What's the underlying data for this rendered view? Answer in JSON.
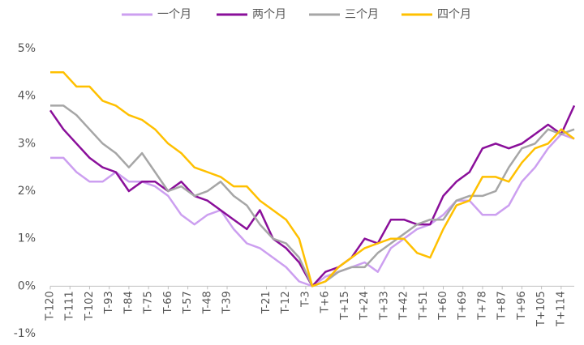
{
  "chart_data": {
    "type": "line",
    "x": [
      -120,
      -114,
      -108,
      -102,
      -96,
      -90,
      -84,
      -78,
      -72,
      -66,
      -60,
      -54,
      -48,
      -42,
      -36,
      -30,
      -24,
      -18,
      -12,
      -6,
      0,
      6,
      12,
      18,
      24,
      30,
      36,
      42,
      48,
      54,
      60,
      66,
      72,
      78,
      84,
      90,
      96,
      102,
      108,
      114,
      120
    ],
    "series": [
      {
        "name": "一个月",
        "color": "#cc9ff0",
        "values": [
          2.7,
          2.7,
          2.4,
          2.2,
          2.2,
          2.4,
          2.2,
          2.2,
          2.1,
          1.9,
          1.5,
          1.3,
          1.5,
          1.6,
          1.2,
          0.9,
          0.8,
          0.6,
          0.4,
          0.1,
          0.0,
          0.2,
          0.3,
          0.4,
          0.5,
          0.3,
          0.8,
          1.0,
          1.2,
          1.3,
          1.5,
          1.8,
          1.8,
          1.5,
          1.5,
          1.7,
          2.2,
          2.5,
          2.9,
          3.2,
          3.1
        ]
      },
      {
        "name": "两个月",
        "color": "#8a0f9a",
        "values": [
          3.7,
          3.3,
          3.0,
          2.7,
          2.5,
          2.4,
          2.0,
          2.2,
          2.2,
          2.0,
          2.2,
          1.9,
          1.8,
          1.6,
          1.4,
          1.2,
          1.6,
          1.0,
          0.8,
          0.5,
          0.0,
          0.3,
          0.4,
          0.6,
          1.0,
          0.9,
          1.4,
          1.4,
          1.3,
          1.3,
          1.9,
          2.2,
          2.4,
          2.9,
          3.0,
          2.9,
          3.0,
          3.2,
          3.4,
          3.2,
          3.8
        ]
      },
      {
        "name": "三个月",
        "color": "#a6a6a6",
        "values": [
          3.8,
          3.8,
          3.6,
          3.3,
          3.0,
          2.8,
          2.5,
          2.8,
          2.4,
          2.0,
          2.1,
          1.9,
          2.0,
          2.2,
          1.9,
          1.7,
          1.3,
          1.0,
          0.9,
          0.6,
          0.0,
          0.1,
          0.3,
          0.4,
          0.4,
          0.7,
          0.9,
          1.1,
          1.3,
          1.4,
          1.4,
          1.8,
          1.9,
          1.9,
          2.0,
          2.5,
          2.9,
          3.0,
          3.3,
          3.2,
          3.3
        ]
      },
      {
        "name": "四个月",
        "color": "#ffc000",
        "values": [
          4.5,
          4.5,
          4.2,
          4.2,
          3.9,
          3.8,
          3.6,
          3.5,
          3.3,
          3.0,
          2.8,
          2.5,
          2.4,
          2.3,
          2.1,
          2.1,
          1.8,
          1.6,
          1.4,
          1.0,
          0.0,
          0.1,
          0.4,
          0.6,
          0.8,
          0.9,
          1.0,
          1.0,
          0.7,
          0.6,
          1.2,
          1.7,
          1.8,
          2.3,
          2.3,
          2.2,
          2.6,
          2.9,
          3.0,
          3.3,
          3.1
        ]
      }
    ],
    "xlim": [
      -120,
      120
    ],
    "xticks": [
      {
        "value": -120,
        "label": "T-120"
      },
      {
        "value": -111,
        "label": "T-111"
      },
      {
        "value": -102,
        "label": "T-102"
      },
      {
        "value": -93,
        "label": "T-93"
      },
      {
        "value": -84,
        "label": "T-84"
      },
      {
        "value": -75,
        "label": "T-75"
      },
      {
        "value": -66,
        "label": "T-66"
      },
      {
        "value": -57,
        "label": "T-57"
      },
      {
        "value": -48,
        "label": "T-48"
      },
      {
        "value": -39,
        "label": "T-39"
      },
      {
        "value": -21,
        "label": "T-21"
      },
      {
        "value": -12,
        "label": "T-12"
      },
      {
        "value": -3,
        "label": "T-3"
      },
      {
        "value": 6,
        "label": "T+6"
      },
      {
        "value": 15,
        "label": "T+15"
      },
      {
        "value": 24,
        "label": "T+24"
      },
      {
        "value": 33,
        "label": "T+33"
      },
      {
        "value": 42,
        "label": "T+42"
      },
      {
        "value": 51,
        "label": "T+51"
      },
      {
        "value": 60,
        "label": "T+60"
      },
      {
        "value": 69,
        "label": "T+69"
      },
      {
        "value": 78,
        "label": "T+78"
      },
      {
        "value": 87,
        "label": "T+87"
      },
      {
        "value": 96,
        "label": "T+96"
      },
      {
        "value": 105,
        "label": "T+105"
      },
      {
        "value": 114,
        "label": "T+114"
      }
    ],
    "ylim": [
      -1,
      5
    ],
    "yticks": [
      {
        "value": -1,
        "label": "-1%"
      },
      {
        "value": 0,
        "label": "0%"
      },
      {
        "value": 1,
        "label": "1%"
      },
      {
        "value": 2,
        "label": "2%"
      },
      {
        "value": 3,
        "label": "3%"
      },
      {
        "value": 4,
        "label": "4%"
      },
      {
        "value": 5,
        "label": "5%"
      }
    ],
    "legend": "top"
  }
}
